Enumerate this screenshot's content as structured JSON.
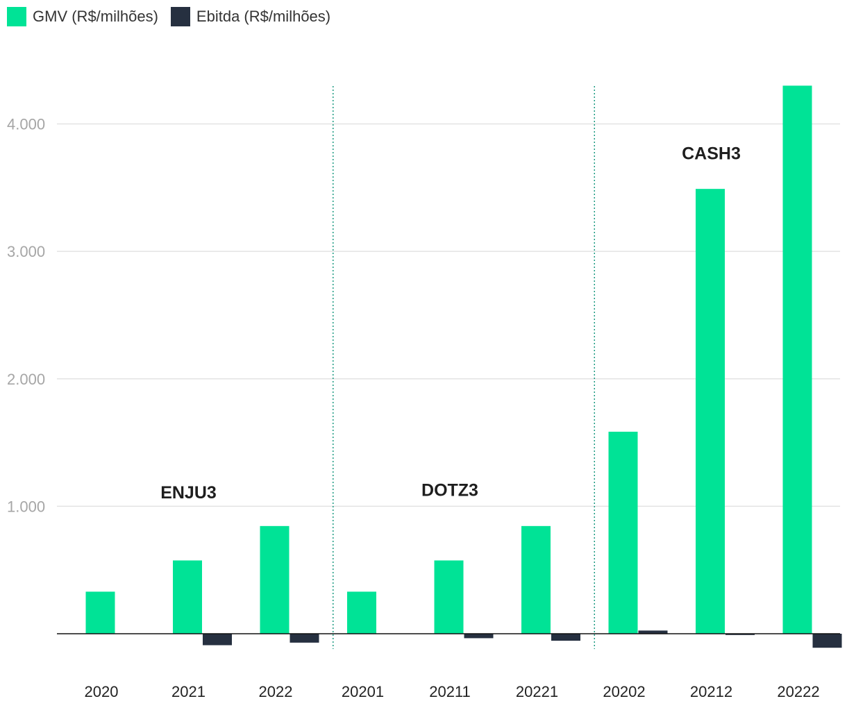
{
  "chart_data": {
    "type": "bar",
    "categories": [
      "2020",
      "2021",
      "2022",
      "20201",
      "20211",
      "20221",
      "20202",
      "20212",
      "20222"
    ],
    "series": [
      {
        "name": "GMV (R$/milhões)",
        "color": "#00e396",
        "values": [
          330,
          575,
          845,
          330,
          575,
          845,
          1585,
          3490,
          4300
        ]
      },
      {
        "name": "Ebitda (R$/milhões)",
        "color": "#263040",
        "values": [
          0,
          -90,
          -70,
          0,
          -35,
          -55,
          25,
          -10,
          -110
        ]
      }
    ],
    "y_ticks": [
      {
        "value": 1000,
        "label": "1.000"
      },
      {
        "value": 2000,
        "label": "2.000"
      },
      {
        "value": 3000,
        "label": "3.000"
      },
      {
        "value": 4000,
        "label": "4.000"
      }
    ],
    "ylim": [
      -120,
      4300
    ],
    "grid": true,
    "legend_position": "top-left",
    "annotations": [
      {
        "text": "ENJU3",
        "x_index": 1,
        "y": 1110
      },
      {
        "text": "DOTZ3",
        "x_index": 4,
        "y": 1130
      },
      {
        "text": "CASH3",
        "x_index": 7,
        "y": 3770
      }
    ],
    "dividers_after_index": [
      2,
      5
    ]
  }
}
